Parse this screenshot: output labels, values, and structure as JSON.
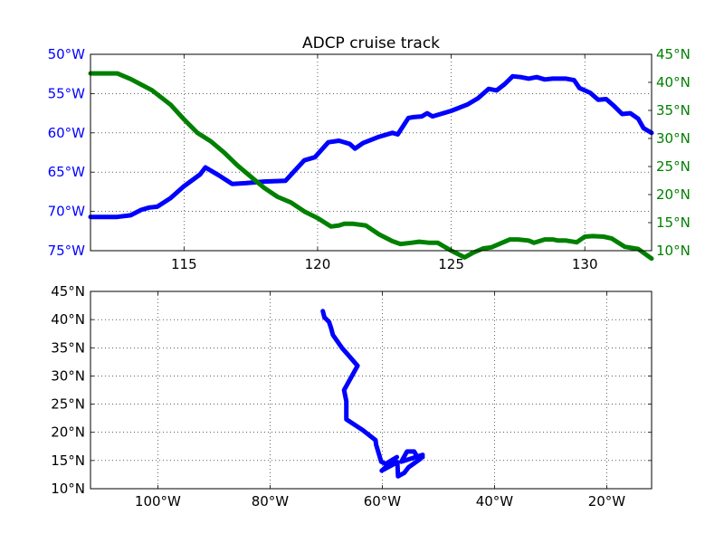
{
  "chart_data": [
    {
      "type": "line",
      "title": "ADCP cruise track",
      "xlabel": "",
      "ylabel": "",
      "xlim": [
        111.5,
        132.5
      ],
      "ylim_left": [
        -75,
        -50
      ],
      "ylim_right": [
        10,
        45
      ],
      "x_ticks": [
        115,
        120,
        125,
        130
      ],
      "y_left_ticks": [
        "50°W",
        "55°W",
        "60°W",
        "65°W",
        "70°W",
        "75°W"
      ],
      "y_left_tick_values": [
        -50,
        -55,
        -60,
        -65,
        -70,
        -75
      ],
      "y_right_ticks": [
        "45°N",
        "40°N",
        "35°N",
        "30°N",
        "25°N",
        "20°N",
        "15°N",
        "10°N"
      ],
      "y_right_tick_values": [
        45,
        40,
        35,
        30,
        25,
        20,
        15,
        10
      ],
      "grid": true,
      "left_axis_color": "#0000ff",
      "right_axis_color": "#008000",
      "series": [
        {
          "axis": "left",
          "color": "#0000ff",
          "x": [
            111.5,
            112.5,
            113.0,
            113.4,
            113.7,
            114.0,
            114.5,
            115.0,
            115.6,
            115.8,
            116.3,
            116.8,
            117.3,
            118.0,
            118.8,
            119.5,
            119.9,
            120.4,
            120.8,
            121.2,
            121.4,
            121.7,
            122.3,
            122.8,
            123.0,
            123.4,
            123.6,
            123.9,
            124.1,
            124.3,
            124.6,
            125.0,
            125.6,
            126.0,
            126.4,
            126.7,
            127.0,
            127.3,
            127.6,
            127.9,
            128.2,
            128.5,
            128.8,
            129.3,
            129.6,
            129.8,
            130.2,
            130.5,
            130.8,
            131.1,
            131.4,
            131.7,
            132.0,
            132.2,
            132.5
          ],
          "y": [
            -70.7,
            -70.7,
            -70.5,
            -69.8,
            -69.5,
            -69.4,
            -68.3,
            -66.8,
            -65.3,
            -64.4,
            -65.4,
            -66.5,
            -66.4,
            -66.2,
            -66.1,
            -63.5,
            -63.1,
            -61.2,
            -61.0,
            -61.4,
            -62.0,
            -61.3,
            -60.5,
            -60.0,
            -60.2,
            -58.1,
            -58.0,
            -57.9,
            -57.5,
            -57.9,
            -57.6,
            -57.2,
            -56.4,
            -55.6,
            -54.4,
            -54.6,
            -53.8,
            -52.8,
            -52.9,
            -53.1,
            -52.9,
            -53.2,
            -53.1,
            -53.1,
            -53.3,
            -54.3,
            -54.9,
            -55.8,
            -55.7,
            -56.6,
            -57.6,
            -57.5,
            -58.2,
            -59.4,
            -60.0
          ]
        },
        {
          "axis": "right",
          "color": "#008000",
          "x": [
            111.5,
            112.5,
            113.0,
            113.4,
            113.8,
            114.5,
            115.0,
            115.5,
            116.0,
            116.5,
            117.0,
            117.5,
            118.0,
            118.5,
            119.0,
            119.5,
            120.0,
            120.5,
            120.8,
            121.0,
            121.3,
            121.8,
            122.3,
            122.8,
            123.1,
            123.5,
            123.8,
            124.2,
            124.5,
            125.0,
            125.5,
            125.8,
            126.2,
            126.5,
            126.8,
            127.2,
            127.5,
            127.9,
            128.1,
            128.5,
            128.8,
            129.0,
            129.3,
            129.7,
            130.0,
            130.3,
            130.7,
            131.0,
            131.5,
            132.0,
            132.5
          ],
          "y": [
            41.6,
            41.6,
            40.6,
            39.6,
            38.6,
            36.0,
            33.4,
            31.0,
            29.5,
            27.5,
            25.2,
            23.2,
            21.2,
            19.6,
            18.6,
            17.0,
            15.8,
            14.3,
            14.5,
            14.8,
            14.8,
            14.5,
            12.9,
            11.7,
            11.2,
            11.4,
            11.6,
            11.4,
            11.4,
            10.0,
            8.8,
            9.6,
            10.4,
            10.6,
            11.2,
            12.0,
            12.0,
            11.8,
            11.4,
            12.0,
            12.0,
            11.8,
            11.8,
            11.5,
            12.5,
            12.6,
            12.5,
            12.2,
            10.7,
            10.3,
            8.6
          ]
        }
      ]
    },
    {
      "type": "line",
      "xlabel": "",
      "ylabel": "",
      "xlim": [
        -112,
        -12
      ],
      "ylim": [
        10,
        45
      ],
      "x_ticks": [
        "100°W",
        "80°W",
        "60°W",
        "40°W",
        "20°W"
      ],
      "x_tick_values": [
        -100,
        -80,
        -60,
        -40,
        -20
      ],
      "y_ticks": [
        "45°N",
        "40°N",
        "35°N",
        "30°N",
        "25°N",
        "20°N",
        "15°N",
        "10°N"
      ],
      "y_tick_values": [
        45,
        40,
        35,
        30,
        25,
        20,
        15,
        10
      ],
      "grid": true,
      "series": [
        {
          "color": "#0000ff",
          "x": [
            -70.6,
            -70.3,
            -69.5,
            -69.1,
            -68.8,
            -67.2,
            -64.4,
            -66.8,
            -66.4,
            -66.4,
            -63.5,
            -61.2,
            -61.1,
            -60.2,
            -59.4,
            -57.4,
            -60.1,
            -57.3,
            -57.2,
            -56.1,
            -55.3,
            -53.2,
            -52.8,
            -56.6,
            -55.6,
            -54.3,
            -53.8,
            -52.8
          ],
          "y": [
            41.5,
            40.4,
            39.6,
            38.4,
            37.3,
            35.0,
            31.8,
            27.5,
            25.5,
            22.3,
            20.4,
            18.6,
            17.8,
            14.8,
            14.4,
            15.6,
            13.2,
            14.7,
            12.2,
            12.8,
            13.8,
            15.3,
            16.0,
            14.8,
            16.6,
            16.6,
            15.7,
            15.6
          ]
        }
      ]
    }
  ]
}
